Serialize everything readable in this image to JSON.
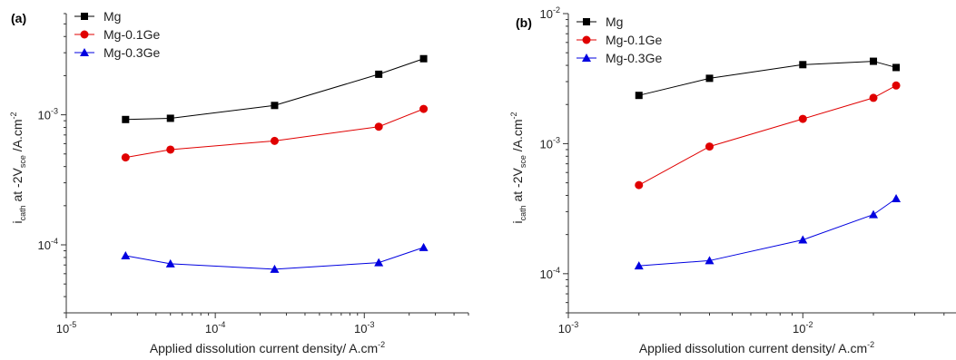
{
  "chart_data": [
    {
      "type": "line",
      "panel_label": "(a)",
      "xscale": "log",
      "yscale": "log",
      "xlim": [
        1e-05,
        0.005
      ],
      "ylim": [
        3e-05,
        0.006
      ],
      "xticks": [
        {
          "value": 1e-05,
          "base": "10",
          "exp": "-5"
        },
        {
          "value": 0.0001,
          "base": "10",
          "exp": "-4"
        },
        {
          "value": 0.001,
          "base": "10",
          "exp": "-3"
        }
      ],
      "yticks": [
        {
          "value": 0.0001,
          "base": "10",
          "exp": "-4"
        },
        {
          "value": 0.001,
          "base": "10",
          "exp": "-3"
        }
      ],
      "xlabel": {
        "main": "Applied dissolution current density/ A.cm",
        "sup": "-2"
      },
      "ylabel": {
        "i": "i",
        "isub": "cath",
        "mid": " at -2V",
        "vsub": "sce",
        "unit": " /A.cm",
        "sup": "-2"
      },
      "legend_position": "top-left",
      "series": [
        {
          "name": "Mg",
          "color": "#000000",
          "marker": "square",
          "x": [
            2.5e-05,
            5e-05,
            0.00025,
            0.00125,
            0.0025
          ],
          "y": [
            0.00092,
            0.00094,
            0.00118,
            0.00205,
            0.0027
          ]
        },
        {
          "name": "Mg-0.1Ge",
          "color": "#e00000",
          "marker": "circle",
          "x": [
            2.5e-05,
            5e-05,
            0.00025,
            0.00125,
            0.0025
          ],
          "y": [
            0.00047,
            0.00054,
            0.00063,
            0.00081,
            0.00111
          ]
        },
        {
          "name": "Mg-0.3Ge",
          "color": "#0000e0",
          "marker": "triangle",
          "x": [
            2.5e-05,
            5e-05,
            0.00025,
            0.00125,
            0.0025
          ],
          "y": [
            8.25e-05,
            7.15e-05,
            6.5e-05,
            7.3e-05,
            9.55e-05
          ]
        }
      ]
    },
    {
      "type": "line",
      "panel_label": "(b)",
      "xscale": "log",
      "yscale": "log",
      "xlim": [
        0.001,
        0.045
      ],
      "ylim": [
        5e-05,
        0.01
      ],
      "xticks": [
        {
          "value": 0.001,
          "base": "10",
          "exp": "-3"
        },
        {
          "value": 0.01,
          "base": "10",
          "exp": "-2"
        }
      ],
      "yticks": [
        {
          "value": 0.0001,
          "base": "10",
          "exp": "-4"
        },
        {
          "value": 0.001,
          "base": "10",
          "exp": "-3"
        },
        {
          "value": 0.01,
          "base": "10",
          "exp": "-2"
        }
      ],
      "xlabel": {
        "main": "Applied dissolution current density/ A.cm",
        "sup": "-2"
      },
      "ylabel": {
        "i": "i",
        "isub": "cath",
        "mid": " at -2V",
        "vsub": "sce",
        "unit": " /A.cm",
        "sup": "-2"
      },
      "legend_position": "top-left",
      "series": [
        {
          "name": "Mg",
          "color": "#000000",
          "marker": "square",
          "x": [
            0.002,
            0.004,
            0.01,
            0.02,
            0.025
          ],
          "y": [
            0.00235,
            0.00318,
            0.00405,
            0.0043,
            0.00385
          ]
        },
        {
          "name": "Mg-0.1Ge",
          "color": "#e00000",
          "marker": "circle",
          "x": [
            0.002,
            0.004,
            0.01,
            0.02,
            0.025
          ],
          "y": [
            0.00048,
            0.00095,
            0.00155,
            0.00225,
            0.0028
          ]
        },
        {
          "name": "Mg-0.3Ge",
          "color": "#0000e0",
          "marker": "triangle",
          "x": [
            0.002,
            0.004,
            0.01,
            0.02,
            0.025
          ],
          "y": [
            0.000115,
            0.000126,
            0.000182,
            0.000285,
            0.000378
          ]
        }
      ]
    }
  ]
}
